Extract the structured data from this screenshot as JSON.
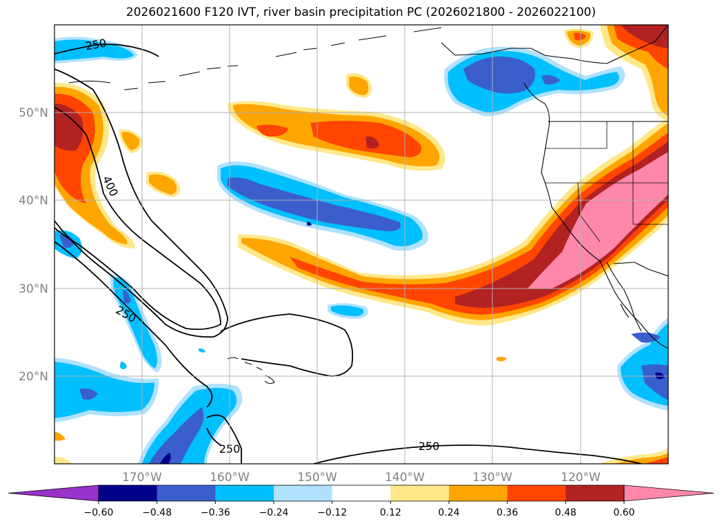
{
  "chart_data": {
    "type": "map-contour",
    "title": "2026021600 F120 IVT, river basin precipitation PC (2026021800 - 2026022100)",
    "lat_ticks": [
      "20°N",
      "30°N",
      "40°N",
      "50°N"
    ],
    "lon_ticks": [
      "170°W",
      "160°W",
      "150°W",
      "140°W",
      "130°W",
      "120°W"
    ],
    "lat_range": [
      10,
      60
    ],
    "lon_range": [
      -180,
      -110
    ],
    "grid": true,
    "ivt_contour_levels": [
      250,
      400
    ],
    "ivt_contour_labels": [
      "250",
      "400",
      "250",
      "250",
      "250"
    ],
    "colorbar": {
      "extend": "both",
      "levels": [
        -0.6,
        -0.48,
        -0.36,
        -0.24,
        -0.12,
        0.12,
        0.24,
        0.36,
        0.48,
        0.6
      ],
      "tick_labels": [
        "−0.60",
        "−0.48",
        "−0.36",
        "−0.24",
        "−0.12",
        "0.12",
        "0.24",
        "0.36",
        "0.48",
        "0.60"
      ],
      "colors": [
        "#9932CC",
        "#00008B",
        "#3A5FCD",
        "#00BFFF",
        "#B0E2FF",
        "#FFFFFF",
        "#FFE88A",
        "#FFA500",
        "#FF4500",
        "#B22222",
        "#FF88AA"
      ]
    }
  }
}
